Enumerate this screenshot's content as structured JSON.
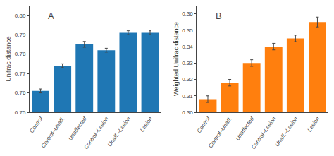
{
  "chart_data": [
    {
      "type": "bar",
      "annotations": [
        "A"
      ],
      "categories": [
        "Control",
        "Control–Unaff.",
        "Unaffected",
        "Control–Lesion",
        "Unaff.–Lesion",
        "Lesion"
      ],
      "values": [
        0.761,
        0.774,
        0.785,
        0.782,
        0.791,
        0.791
      ],
      "errors": [
        0.001,
        0.001,
        0.0015,
        0.001,
        0.001,
        0.001
      ],
      "ylabel": "Unifrac distance",
      "ylim": [
        0.75,
        0.805
      ],
      "yticks": [
        0.75,
        0.76,
        0.77,
        0.78,
        0.79,
        {
          "value": 0.8,
          "label": "0.80"
        }
      ],
      "grid": false
    },
    {
      "type": "bar",
      "annotations": [
        "B"
      ],
      "categories": [
        "Control",
        "Control–Unaff.",
        "Unaffected",
        "Control–Lesion",
        "Unaff.–Lesion",
        "Lesion"
      ],
      "values": [
        0.308,
        0.318,
        0.33,
        0.34,
        0.345,
        0.355
      ],
      "errors": [
        0.002,
        0.002,
        0.002,
        0.002,
        0.002,
        0.003
      ],
      "ylabel": "Weighted Unifrac distance",
      "ylim": [
        0.3,
        0.365
      ],
      "yticks": [
        {
          "value": 0.3,
          "label": "0.30"
        },
        0.31,
        0.32,
        0.33,
        0.34,
        0.35,
        0.36
      ],
      "grid": false
    }
  ]
}
